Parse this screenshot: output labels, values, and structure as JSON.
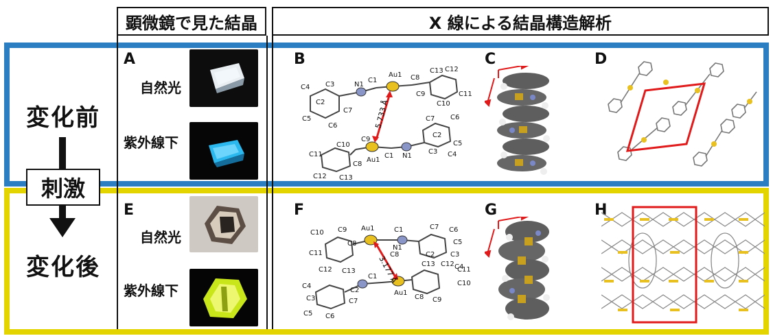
{
  "headers": {
    "microscope": "顕微鏡で見た結晶",
    "xray": "X 線による結晶構造解析"
  },
  "rows": {
    "before": "変化前",
    "stimulus": "刺激",
    "after": "変化後"
  },
  "panels": {
    "a": "A",
    "b": "B",
    "c": "C",
    "d": "D",
    "e": "E",
    "f": "F",
    "g": "G",
    "h": "H"
  },
  "light": {
    "natural": "自然光",
    "uv": "紫外線下"
  },
  "distances": {
    "before": "5.733 Å",
    "after": "3.177 Å"
  },
  "atoms_b_top": [
    "C4",
    "C3",
    "N1",
    "C1",
    "Au1",
    "C8",
    "C13",
    "C12",
    "C2",
    "C7",
    "C5",
    "C6",
    "C9",
    "C10",
    "C11"
  ],
  "atoms_b_bottom": [
    "C7",
    "C6",
    "C10",
    "C9",
    "C2",
    "C5",
    "C11",
    "N1",
    "C1",
    "C3",
    "C8",
    "Au1",
    "C4",
    "C12",
    "C13"
  ],
  "atoms_f_top": [
    "C10",
    "C9",
    "Au1",
    "C1",
    "C7",
    "C6",
    "C8",
    "N1",
    "C5",
    "C11",
    "C2",
    "C3",
    "C4",
    "C12",
    "C13",
    "C8"
  ],
  "atoms_f_bottom": [
    "C13",
    "C12",
    "C11",
    "C10",
    "C4",
    "C1",
    "C2",
    "C3",
    "C7",
    "C5",
    "C6",
    "Au1",
    "C8",
    "C9"
  ],
  "colors": {
    "before": "#2b7ec1",
    "after": "#e3d400",
    "highlight": "#e01a1a",
    "gold": "#c8a020"
  }
}
